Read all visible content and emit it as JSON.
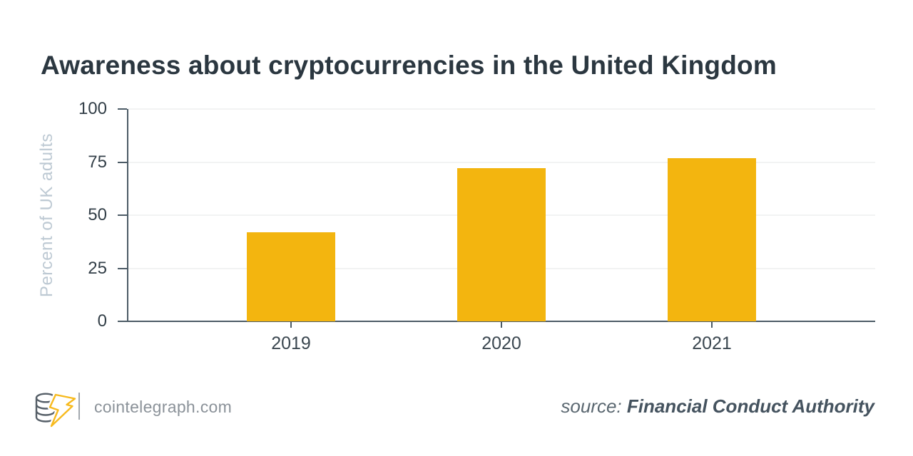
{
  "title": "Awareness about cryptocurrencies in the United Kingdom",
  "chart_data": {
    "type": "bar",
    "title": "Awareness about cryptocurrencies in the United Kingdom",
    "categories": [
      "2019",
      "2020",
      "2021"
    ],
    "values": [
      42,
      72,
      77
    ],
    "xlabel": "",
    "ylabel": "Percent of UK adults",
    "ylim": [
      0,
      100
    ],
    "yticks": [
      0,
      25,
      50,
      75,
      100
    ],
    "grid": true,
    "legend": false,
    "bar_color": "#F3B50F"
  },
  "footer": {
    "site_label": "cointelegraph.com",
    "source_prefix": "source:",
    "source_name": "Financial Conduct Authority",
    "logo_icon": "cointelegraph-coin-bolt-logo"
  },
  "colors": {
    "bar": "#F3B50F",
    "title_text": "#2B3740",
    "axis": "#4C5B66",
    "logo_yellow": "#F7BA1E",
    "logo_gray": "#565F68"
  }
}
